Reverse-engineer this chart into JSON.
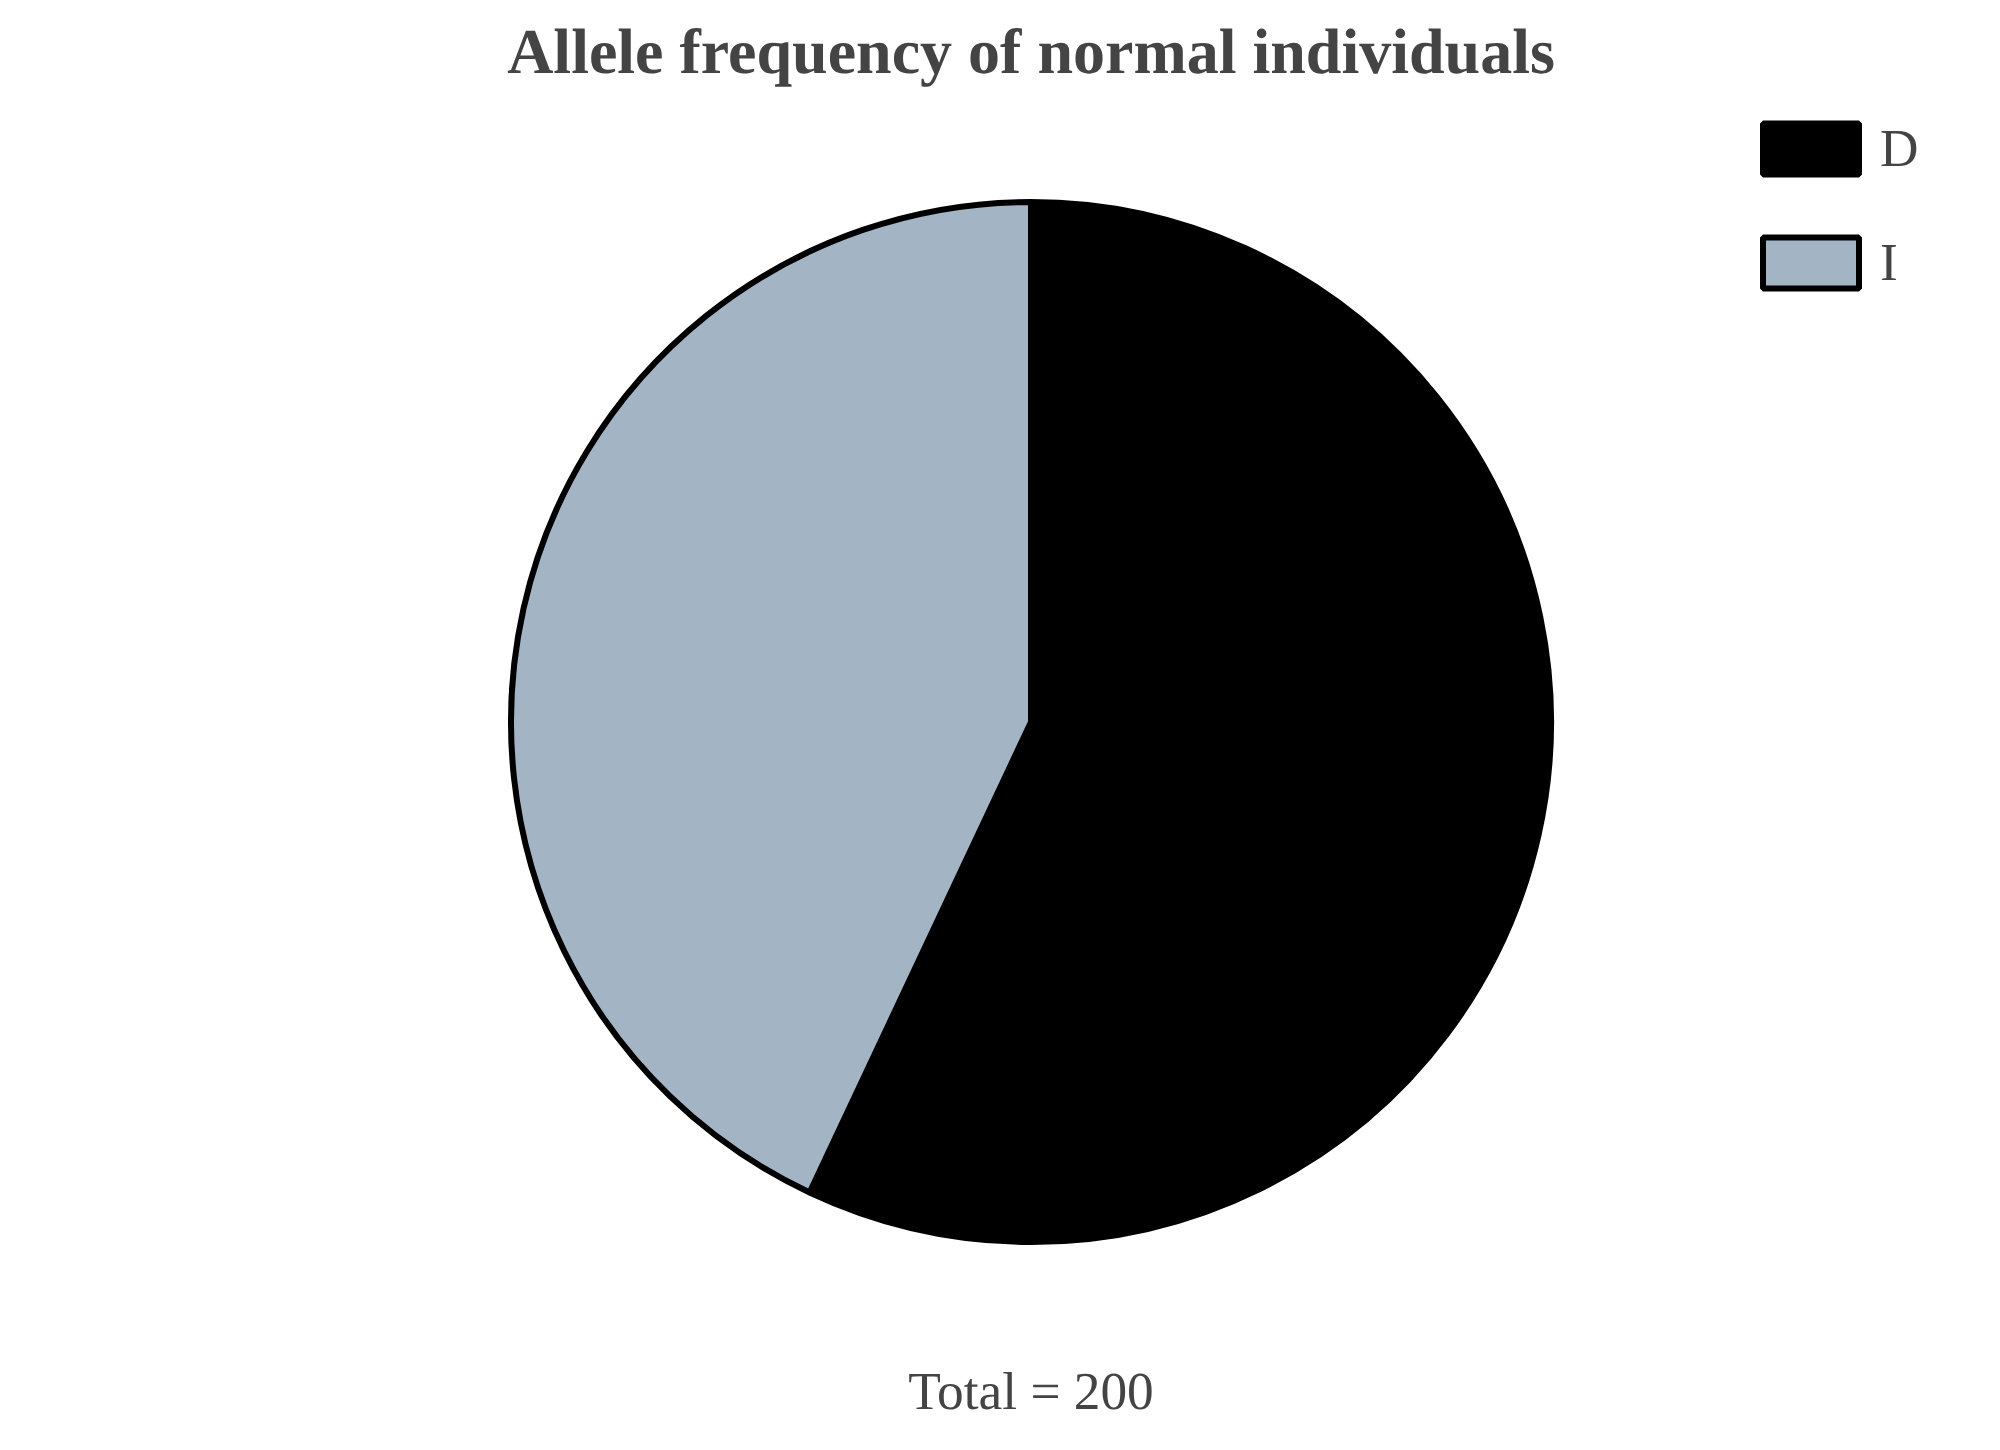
{
  "chart_data": {
    "type": "pie",
    "title": "Allele frequency of normal individuals",
    "categories": [
      "D",
      "I"
    ],
    "values": [
      57,
      43
    ],
    "colors": [
      "#000000",
      "#a3b4c4"
    ],
    "legend": "top right",
    "annotations": [
      "Total = 200"
    ]
  }
}
